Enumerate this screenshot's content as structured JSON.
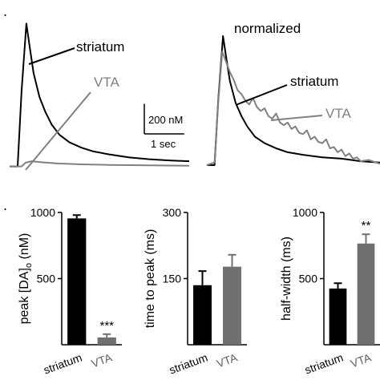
{
  "panel_marks": {
    "top": ".",
    "bottom": "."
  },
  "colors": {
    "striatum": "#000000",
    "vta": "#808080",
    "axis": "#000000"
  },
  "chart_data": [
    {
      "id": "traces_raw",
      "type": "line",
      "title": "",
      "scale_bar": {
        "y_label": "200 nM",
        "y_value_nM": 200,
        "x_label": "1 sec",
        "x_value_s": 1
      },
      "x_range_s": [
        0,
        4.5
      ],
      "y_range_nM": [
        -50,
        1000
      ],
      "series": [
        {
          "name": "striatum",
          "color": "#000000",
          "x": [
            0,
            0.2,
            0.3,
            0.42,
            0.5,
            0.6,
            0.75,
            0.9,
            1.05,
            1.25,
            1.5,
            1.8,
            2.1,
            2.5,
            3.0,
            3.5,
            4.0,
            4.5
          ],
          "y": [
            0,
            0,
            500,
            950,
            800,
            620,
            460,
            360,
            280,
            210,
            160,
            125,
            100,
            80,
            60,
            48,
            40,
            35
          ]
        },
        {
          "name": "VTA",
          "color": "#808080",
          "x": [
            0,
            0.3,
            0.4,
            0.55,
            0.8,
            1.2,
            1.8,
            2.5,
            3.5,
            4.5
          ],
          "y": [
            0,
            0,
            25,
            35,
            28,
            20,
            14,
            10,
            7,
            5
          ]
        }
      ]
    },
    {
      "id": "traces_normalized",
      "type": "line",
      "title": "normalized",
      "x_range_s": [
        0,
        4.5
      ],
      "y_range": [
        -0.05,
        1.0
      ],
      "series": [
        {
          "name": "striatum",
          "color": "#000000",
          "x": [
            0,
            0.2,
            0.3,
            0.42,
            0.5,
            0.6,
            0.75,
            0.9,
            1.05,
            1.25,
            1.5,
            1.8,
            2.1,
            2.5,
            3.0,
            3.5,
            4.0,
            4.5
          ],
          "y": [
            0,
            0,
            0.52,
            1.0,
            0.84,
            0.65,
            0.48,
            0.38,
            0.3,
            0.22,
            0.17,
            0.13,
            0.1,
            0.08,
            0.06,
            0.05,
            0.03,
            0.02
          ]
        },
        {
          "name": "VTA",
          "color": "#808080",
          "x": [
            0,
            0.2,
            0.3,
            0.4,
            0.5,
            0.6,
            0.7,
            0.8,
            0.9,
            1.0,
            1.1,
            1.2,
            1.3,
            1.4,
            1.5,
            1.6,
            1.7,
            1.8,
            1.9,
            2.0,
            2.1,
            2.2,
            2.3,
            2.4,
            2.5,
            2.6,
            2.7,
            2.8,
            2.9,
            3.0,
            3.1,
            3.2,
            3.3,
            3.4,
            3.5,
            3.6,
            3.7,
            3.8,
            3.9,
            4.0,
            4.2,
            4.5
          ],
          "y": [
            0,
            0.02,
            0.5,
            0.88,
            0.8,
            0.72,
            0.66,
            0.58,
            0.55,
            0.5,
            0.47,
            0.52,
            0.45,
            0.42,
            0.44,
            0.38,
            0.36,
            0.4,
            0.33,
            0.31,
            0.33,
            0.28,
            0.3,
            0.25,
            0.24,
            0.27,
            0.2,
            0.22,
            0.18,
            0.17,
            0.2,
            0.13,
            0.14,
            0.1,
            0.12,
            0.07,
            0.09,
            0.05,
            0.06,
            0.03,
            0.04,
            0.01
          ]
        }
      ]
    },
    {
      "id": "peak",
      "type": "bar",
      "ylabel": "peak [DA]o (nM)",
      "ylabel_main": "peak [DA]",
      "ylabel_sub": "o",
      "ylabel_unit": " (nM)",
      "ylim": [
        0,
        1000
      ],
      "yticks": [
        500,
        1000
      ],
      "categories": [
        "striatum",
        "VTA"
      ],
      "values": [
        955,
        55
      ],
      "errors": [
        25,
        25
      ],
      "colors": [
        "#000000",
        "#707070"
      ],
      "annotations": [
        "",
        "***"
      ]
    },
    {
      "id": "time_to_peak",
      "type": "bar",
      "ylabel": "time to peak (ms)",
      "ylim": [
        0,
        300
      ],
      "yticks": [
        150,
        300
      ],
      "categories": [
        "striatum",
        "VTA"
      ],
      "values": [
        135,
        177
      ],
      "errors": [
        32,
        27
      ],
      "colors": [
        "#000000",
        "#707070"
      ],
      "annotations": [
        "",
        ""
      ]
    },
    {
      "id": "half_width",
      "type": "bar",
      "ylabel": "half-width (ms)",
      "ylim": [
        0,
        1000
      ],
      "yticks": [
        500,
        1000
      ],
      "categories": [
        "striatum",
        "VTA"
      ],
      "values": [
        425,
        765
      ],
      "errors": [
        40,
        70
      ],
      "colors": [
        "#000000",
        "#707070"
      ],
      "annotations": [
        "",
        "**"
      ]
    }
  ]
}
